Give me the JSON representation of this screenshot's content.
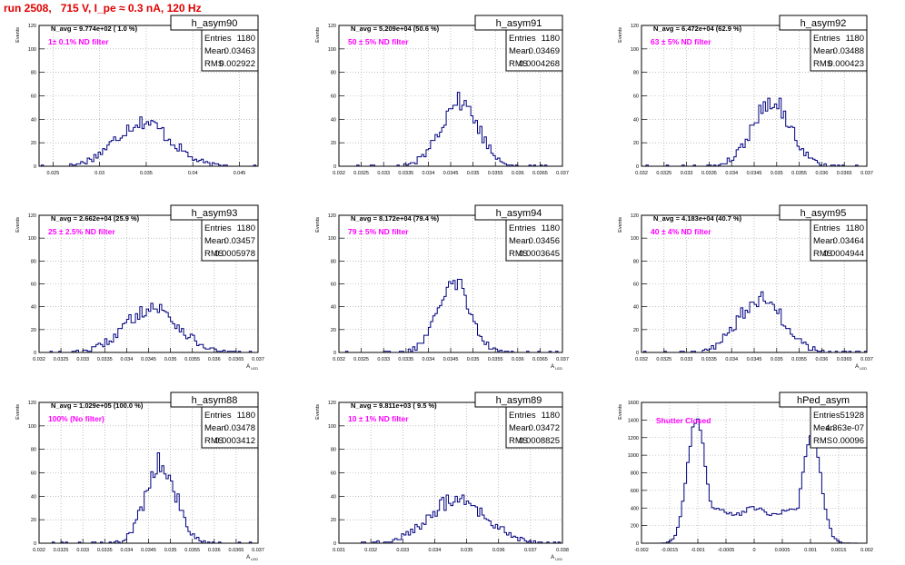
{
  "title": "run 2508,   715 V, I_pe ≈ 0.3 nA, 120 Hz",
  "chart_data": [
    {
      "type": "bar",
      "name": "h_asym90",
      "stats": {
        "entries": "1180",
        "mean": "0.03463",
        "rms": "0.002922"
      },
      "navg": "N_avg = 9.774e+02 ( 1.0 %)",
      "filter": "1± 0.1% ND filter",
      "xlabel": "",
      "ylabel": "Events",
      "xlim": [
        0.0235,
        0.047
      ],
      "ylim": [
        0,
        120
      ],
      "xticks": [
        0.025,
        0.03,
        0.035,
        0.04,
        0.045
      ],
      "xtick_labels": [
        "0.025",
        "0.03",
        "0.035",
        "0.04",
        "0.045"
      ],
      "yticks": [
        0,
        20,
        40,
        60,
        80,
        100,
        120
      ],
      "mean": 0.03463,
      "rms": 0.002922,
      "entries": 1180
    },
    {
      "type": "bar",
      "name": "h_asym91",
      "stats": {
        "entries": "1180",
        "mean": "0.03469",
        "rms": "0.0004268"
      },
      "navg": "N_avg = 5.209e+04 (50.6 %)",
      "filter": "50 ± 5% ND filter",
      "xlabel": "",
      "ylabel": "Events",
      "xlim": [
        0.032,
        0.037
      ],
      "ylim": [
        0,
        120
      ],
      "xticks": [
        0.032,
        0.0325,
        0.033,
        0.0335,
        0.034,
        0.0345,
        0.035,
        0.0355,
        0.036,
        0.0365,
        0.037
      ],
      "xtick_labels": [
        "0.032",
        "0.0325",
        "0.033",
        "0.0335",
        "0.034",
        "0.0345",
        "0.035",
        "0.0355",
        "0.036",
        "0.0365",
        "0.037"
      ],
      "yticks": [
        0,
        20,
        40,
        60,
        80,
        100,
        120
      ],
      "mean": 0.03469,
      "rms": 0.0004268,
      "entries": 1180
    },
    {
      "type": "bar",
      "name": "h_asym92",
      "stats": {
        "entries": "1180",
        "mean": "0.03488",
        "rms": "0.000423"
      },
      "navg": "N_avg = 6.472e+04 (62.9 %)",
      "filter": "63 ± 5% ND filter",
      "xlabel": "",
      "ylabel": "Events",
      "xlim": [
        0.032,
        0.037
      ],
      "ylim": [
        0,
        120
      ],
      "xticks": [
        0.032,
        0.0325,
        0.033,
        0.0335,
        0.034,
        0.0345,
        0.035,
        0.0355,
        0.036,
        0.0365,
        0.037
      ],
      "xtick_labels": [
        "0.032",
        "0.0325",
        "0.033",
        "0.0335",
        "0.034",
        "0.0345",
        "0.035",
        "0.0355",
        "0.036",
        "0.0365",
        "0.037"
      ],
      "yticks": [
        0,
        20,
        40,
        60,
        80,
        100,
        120
      ],
      "mean": 0.03488,
      "rms": 0.000423,
      "entries": 1180
    },
    {
      "type": "bar",
      "name": "h_asym93",
      "stats": {
        "entries": "1180",
        "mean": "0.03457",
        "rms": "0.0005978"
      },
      "navg": "N_avg = 2.662e+04 (25.9 %)",
      "filter": "25 ± 2.5% ND filter",
      "xlabel": "A_LED",
      "ylabel": "Events",
      "xlim": [
        0.032,
        0.037
      ],
      "ylim": [
        0,
        120
      ],
      "xticks": [
        0.032,
        0.0325,
        0.033,
        0.0335,
        0.034,
        0.0345,
        0.035,
        0.0355,
        0.036,
        0.0365,
        0.037
      ],
      "xtick_labels": [
        "0.032",
        "0.0325",
        "0.033",
        "0.0335",
        "0.034",
        "0.0345",
        "0.035",
        "0.0355",
        "0.036",
        "0.0365",
        "0.037"
      ],
      "yticks": [
        0,
        20,
        40,
        60,
        80,
        100,
        120
      ],
      "mean": 0.03457,
      "rms": 0.0005978,
      "entries": 1180
    },
    {
      "type": "bar",
      "name": "h_asym94",
      "stats": {
        "entries": "1180",
        "mean": "0.03456",
        "rms": "0.0003645"
      },
      "navg": "N_avg = 8.172e+04 (79.4 %)",
      "filter": "79 ± 5% ND filter",
      "xlabel": "A_LED",
      "ylabel": "Events",
      "xlim": [
        0.032,
        0.037
      ],
      "ylim": [
        0,
        120
      ],
      "xticks": [
        0.032,
        0.0325,
        0.033,
        0.0335,
        0.034,
        0.0345,
        0.035,
        0.0355,
        0.036,
        0.0365,
        0.037
      ],
      "xtick_labels": [
        "0.032",
        "0.0325",
        "0.033",
        "0.0335",
        "0.034",
        "0.0345",
        "0.035",
        "0.0355",
        "0.036",
        "0.0365",
        "0.037"
      ],
      "yticks": [
        0,
        20,
        40,
        60,
        80,
        100,
        120
      ],
      "mean": 0.03456,
      "rms": 0.0003645,
      "entries": 1180
    },
    {
      "type": "bar",
      "name": "h_asym95",
      "stats": {
        "entries": "1180",
        "mean": "0.03464",
        "rms": "0.0004944"
      },
      "navg": "N_avg = 4.183e+04 (40.7 %)",
      "filter": "40 ± 4% ND filter",
      "xlabel": "A_LED",
      "ylabel": "Events",
      "xlim": [
        0.032,
        0.037
      ],
      "ylim": [
        0,
        120
      ],
      "xticks": [
        0.032,
        0.0325,
        0.033,
        0.0335,
        0.034,
        0.0345,
        0.035,
        0.0355,
        0.036,
        0.0365,
        0.037
      ],
      "xtick_labels": [
        "0.032",
        "0.0325",
        "0.033",
        "0.0335",
        "0.034",
        "0.0345",
        "0.035",
        "0.0355",
        "0.036",
        "0.0365",
        "0.037"
      ],
      "yticks": [
        0,
        20,
        40,
        60,
        80,
        100,
        120
      ],
      "mean": 0.03464,
      "rms": 0.0004944,
      "entries": 1180
    },
    {
      "type": "bar",
      "name": "h_asym88",
      "stats": {
        "entries": "1180",
        "mean": "0.03478",
        "rms": "0.0003412"
      },
      "navg": "N_avg = 1.029e+05 (100.0 %)",
      "filter": "100% (No filter)",
      "xlabel": "A_LED",
      "ylabel": "Events",
      "xlim": [
        0.032,
        0.037
      ],
      "ylim": [
        0,
        120
      ],
      "xticks": [
        0.032,
        0.0325,
        0.033,
        0.0335,
        0.034,
        0.0345,
        0.035,
        0.0355,
        0.036,
        0.0365,
        0.037
      ],
      "xtick_labels": [
        "0.032",
        "0.0325",
        "0.033",
        "0.0335",
        "0.034",
        "0.0345",
        "0.035",
        "0.0355",
        "0.036",
        "0.0365",
        "0.037"
      ],
      "yticks": [
        0,
        20,
        40,
        60,
        80,
        100,
        120
      ],
      "mean": 0.03478,
      "rms": 0.0003412,
      "entries": 1180
    },
    {
      "type": "bar",
      "name": "h_asym89",
      "stats": {
        "entries": "1180",
        "mean": "0.03472",
        "rms": "0.0008825"
      },
      "navg": "N_avg = 9.811e+03 ( 9.5 %)",
      "filter": "10 ± 1% ND filter",
      "xlabel": "A_LED",
      "ylabel": "Events",
      "xlim": [
        0.031,
        0.038
      ],
      "ylim": [
        0,
        120
      ],
      "xticks": [
        0.031,
        0.032,
        0.033,
        0.034,
        0.035,
        0.036,
        0.037,
        0.038
      ],
      "xtick_labels": [
        "0.031",
        "0.032",
        "0.033",
        "0.034",
        "0.035",
        "0.036",
        "0.037",
        "0.038"
      ],
      "yticks": [
        0,
        20,
        40,
        60,
        80,
        100,
        120
      ],
      "mean": 0.03472,
      "rms": 0.0008825,
      "entries": 1180
    },
    {
      "type": "bar",
      "name": "hPed_asym",
      "stats": {
        "entries": "51928",
        "mean": "4.363e-07",
        "rms": "0.00096"
      },
      "annotation": "Shutter Closed",
      "xlabel": "",
      "ylabel": "Events",
      "xlim": [
        -0.002,
        0.002
      ],
      "ylim": [
        0,
        1600
      ],
      "xticks": [
        -0.002,
        -0.0015,
        -0.001,
        -0.0005,
        0,
        0.0005,
        0.001,
        0.0015,
        0.002
      ],
      "xtick_labels": [
        "-0.002",
        "-0.0015",
        "-0.001",
        "-0.0005",
        "0",
        "0.0005",
        "0.001",
        "0.0015",
        "0.002"
      ],
      "yticks": [
        0,
        200,
        400,
        600,
        800,
        1000,
        1200,
        1400,
        1600
      ],
      "entries": 51928
    }
  ],
  "colors": {
    "hist": "#00007f",
    "title": "#e00000",
    "label": "#ff00ff",
    "grid": "#999999"
  }
}
